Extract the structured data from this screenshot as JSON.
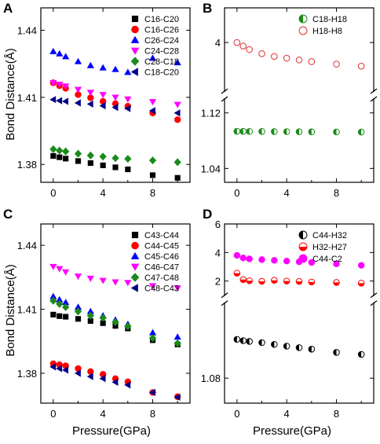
{
  "colors": {
    "black": "#000000",
    "red": "#ff0000",
    "blue": "#0000ff",
    "magenta": "#ff00ff",
    "green": "#1a8a1a",
    "navy": "#00008b",
    "lightred": "#e03030"
  },
  "labels": {
    "ylabel_left": "Bond Distance(Å)",
    "xlabel": "Pressure(GPa)"
  },
  "chart_data": [
    {
      "panel": "A",
      "type": "scatter",
      "x": [
        0,
        0.5,
        1,
        2,
        3,
        4,
        5,
        6,
        8,
        10
      ],
      "xticks": [
        "0",
        "4",
        "8"
      ],
      "yticks": [
        "1.38",
        "1.41",
        "1.44"
      ],
      "xlim": [
        -1,
        11
      ],
      "ylim": [
        1.372,
        1.45
      ],
      "legend_position": "top-right",
      "series": [
        {
          "name": "C16-C20",
          "color": "#000000",
          "marker": "square",
          "values": [
            1.3838,
            1.3832,
            1.3826,
            1.3815,
            1.3806,
            1.3796,
            1.3787,
            1.3778,
            1.3752,
            1.374
          ]
        },
        {
          "name": "C16-C26",
          "color": "#ff0000",
          "marker": "circle",
          "values": [
            1.4165,
            1.4152,
            1.414,
            1.4112,
            1.4098,
            1.4082,
            1.4072,
            1.406,
            1.403,
            1.4
          ]
        },
        {
          "name": "C26-C24",
          "color": "#0000ff",
          "marker": "triangle-up",
          "values": [
            1.4305,
            1.4295,
            1.4282,
            1.426,
            1.4242,
            1.4232,
            1.4225,
            1.4212,
            1.4275,
            1.4255
          ]
        },
        {
          "name": "C24-C28",
          "color": "#ff00ff",
          "marker": "triangle-down",
          "values": [
            1.4165,
            1.4158,
            1.415,
            1.4135,
            1.4122,
            1.4112,
            1.41,
            1.4092,
            1.408,
            1.4068
          ]
        },
        {
          "name": "C28-C18",
          "color": "#1a8a1a",
          "marker": "diamond",
          "values": [
            1.3868,
            1.3862,
            1.3858,
            1.3848,
            1.384,
            1.3835,
            1.3828,
            1.3825,
            1.3818,
            1.381
          ]
        },
        {
          "name": "C18-C20",
          "color": "#00008b",
          "marker": "triangle-left",
          "values": [
            1.409,
            1.4085,
            1.4082,
            1.4075,
            1.407,
            1.4062,
            1.4055,
            1.405,
            1.404,
            1.403
          ]
        }
      ]
    },
    {
      "panel": "B",
      "type": "scatter",
      "broken_axis": true,
      "x": [
        0,
        0.5,
        1,
        2,
        3,
        4,
        5,
        6,
        8,
        10
      ],
      "xticks": [
        "0",
        "4",
        "8"
      ],
      "upper": {
        "ylim": [
          2.6,
          5.0
        ],
        "yticks": [
          "4"
        ],
        "ytick_values": [
          4
        ]
      },
      "lower": {
        "ylim": [
          1.02,
          1.14
        ],
        "yticks": [
          "1.04",
          "1.12"
        ],
        "ytick_values": [
          1.04,
          1.12
        ]
      },
      "xlim": [
        -1,
        11
      ],
      "legend_position": "top-right",
      "series": [
        {
          "name": "C18-H18",
          "color": "#1a8a1a",
          "marker": "circle-half-left",
          "segment": "lower",
          "values": [
            1.0935,
            1.0934,
            1.0933,
            1.0932,
            1.0931,
            1.093,
            1.0929,
            1.0928,
            1.0926,
            1.0924
          ]
        },
        {
          "name": "H18-H8",
          "color": "#e03030",
          "marker": "circle-open",
          "segment": "upper",
          "values": [
            4.0,
            3.9,
            3.8,
            3.68,
            3.6,
            3.55,
            3.5,
            3.45,
            3.38,
            3.32
          ]
        }
      ]
    },
    {
      "panel": "C",
      "type": "scatter",
      "x": [
        0,
        0.5,
        1,
        2,
        3,
        4,
        5,
        6,
        8,
        10
      ],
      "xticks": [
        "0",
        "4",
        "8"
      ],
      "yticks": [
        "1.38",
        "1.41",
        "1.44"
      ],
      "xlim": [
        -1,
        11
      ],
      "ylim": [
        1.366,
        1.45
      ],
      "legend_position": "top-right",
      "series": [
        {
          "name": "C43-C44",
          "color": "#000000",
          "marker": "square",
          "values": [
            1.4075,
            1.4068,
            1.4065,
            1.4055,
            1.4045,
            1.4035,
            1.4022,
            1.401,
            1.3955,
            1.3935
          ]
        },
        {
          "name": "C44-C45",
          "color": "#ff0000",
          "marker": "circle",
          "values": [
            1.3845,
            1.384,
            1.3835,
            1.3822,
            1.3808,
            1.3795,
            1.3775,
            1.376,
            1.371,
            1.369
          ]
        },
        {
          "name": "C45-C46",
          "color": "#0000ff",
          "marker": "triangle-up",
          "values": [
            1.416,
            1.4145,
            1.4132,
            1.411,
            1.409,
            1.407,
            1.405,
            1.403,
            1.399,
            1.397
          ]
        },
        {
          "name": "C46-C47",
          "color": "#ff00ff",
          "marker": "triangle-down",
          "values": [
            1.43,
            1.429,
            1.4275,
            1.4255,
            1.4245,
            1.4235,
            1.4228,
            1.4225,
            1.421,
            1.42
          ]
        },
        {
          "name": "C47-C48",
          "color": "#1a8a1a",
          "marker": "diamond",
          "values": [
            1.414,
            1.4125,
            1.411,
            1.409,
            1.407,
            1.406,
            1.404,
            1.402,
            1.3965,
            1.394
          ]
        },
        {
          "name": "C48-C43",
          "color": "#00008b",
          "marker": "triangle-left",
          "values": [
            1.383,
            1.3822,
            1.3815,
            1.38,
            1.3785,
            1.3775,
            1.3758,
            1.3745,
            1.371,
            1.3688
          ]
        }
      ]
    },
    {
      "panel": "D",
      "type": "scatter",
      "broken_axis": true,
      "x": [
        0,
        0.5,
        1,
        2,
        3,
        4,
        5,
        6,
        8,
        10
      ],
      "xticks": [
        "0",
        "4",
        "8"
      ],
      "upper": {
        "ylim": [
          1.0,
          6.0
        ],
        "yticks": [
          "2",
          "4",
          "6"
        ],
        "ytick_values": [
          2,
          4,
          6
        ]
      },
      "lower": {
        "ylim": [
          1.07,
          1.11
        ],
        "yticks": [
          "1.08"
        ],
        "ytick_values": [
          1.08
        ]
      },
      "xlim": [
        -1,
        11
      ],
      "legend_position": "top-right",
      "series": [
        {
          "name": "C44-H32",
          "color": "#000000",
          "marker": "circle-half-left",
          "segment": "lower",
          "values": [
            1.0955,
            1.095,
            1.0947,
            1.0942,
            1.0935,
            1.0928,
            1.0922,
            1.0916,
            1.0903,
            1.0895
          ]
        },
        {
          "name": "H32-H27",
          "color": "#ff0000",
          "marker": "circle-half-bottom",
          "segment": "upper",
          "values": [
            2.55,
            2.1,
            2.02,
            1.98,
            2.05,
            2.0,
            1.97,
            1.93,
            1.9,
            1.85
          ]
        },
        {
          "name": "C44-C2",
          "color": "#ff00ff",
          "marker": "circle",
          "segment": "upper",
          "values": [
            3.8,
            3.62,
            3.55,
            3.5,
            3.45,
            3.4,
            3.35,
            3.3,
            3.2,
            3.1
          ]
        }
      ]
    }
  ]
}
